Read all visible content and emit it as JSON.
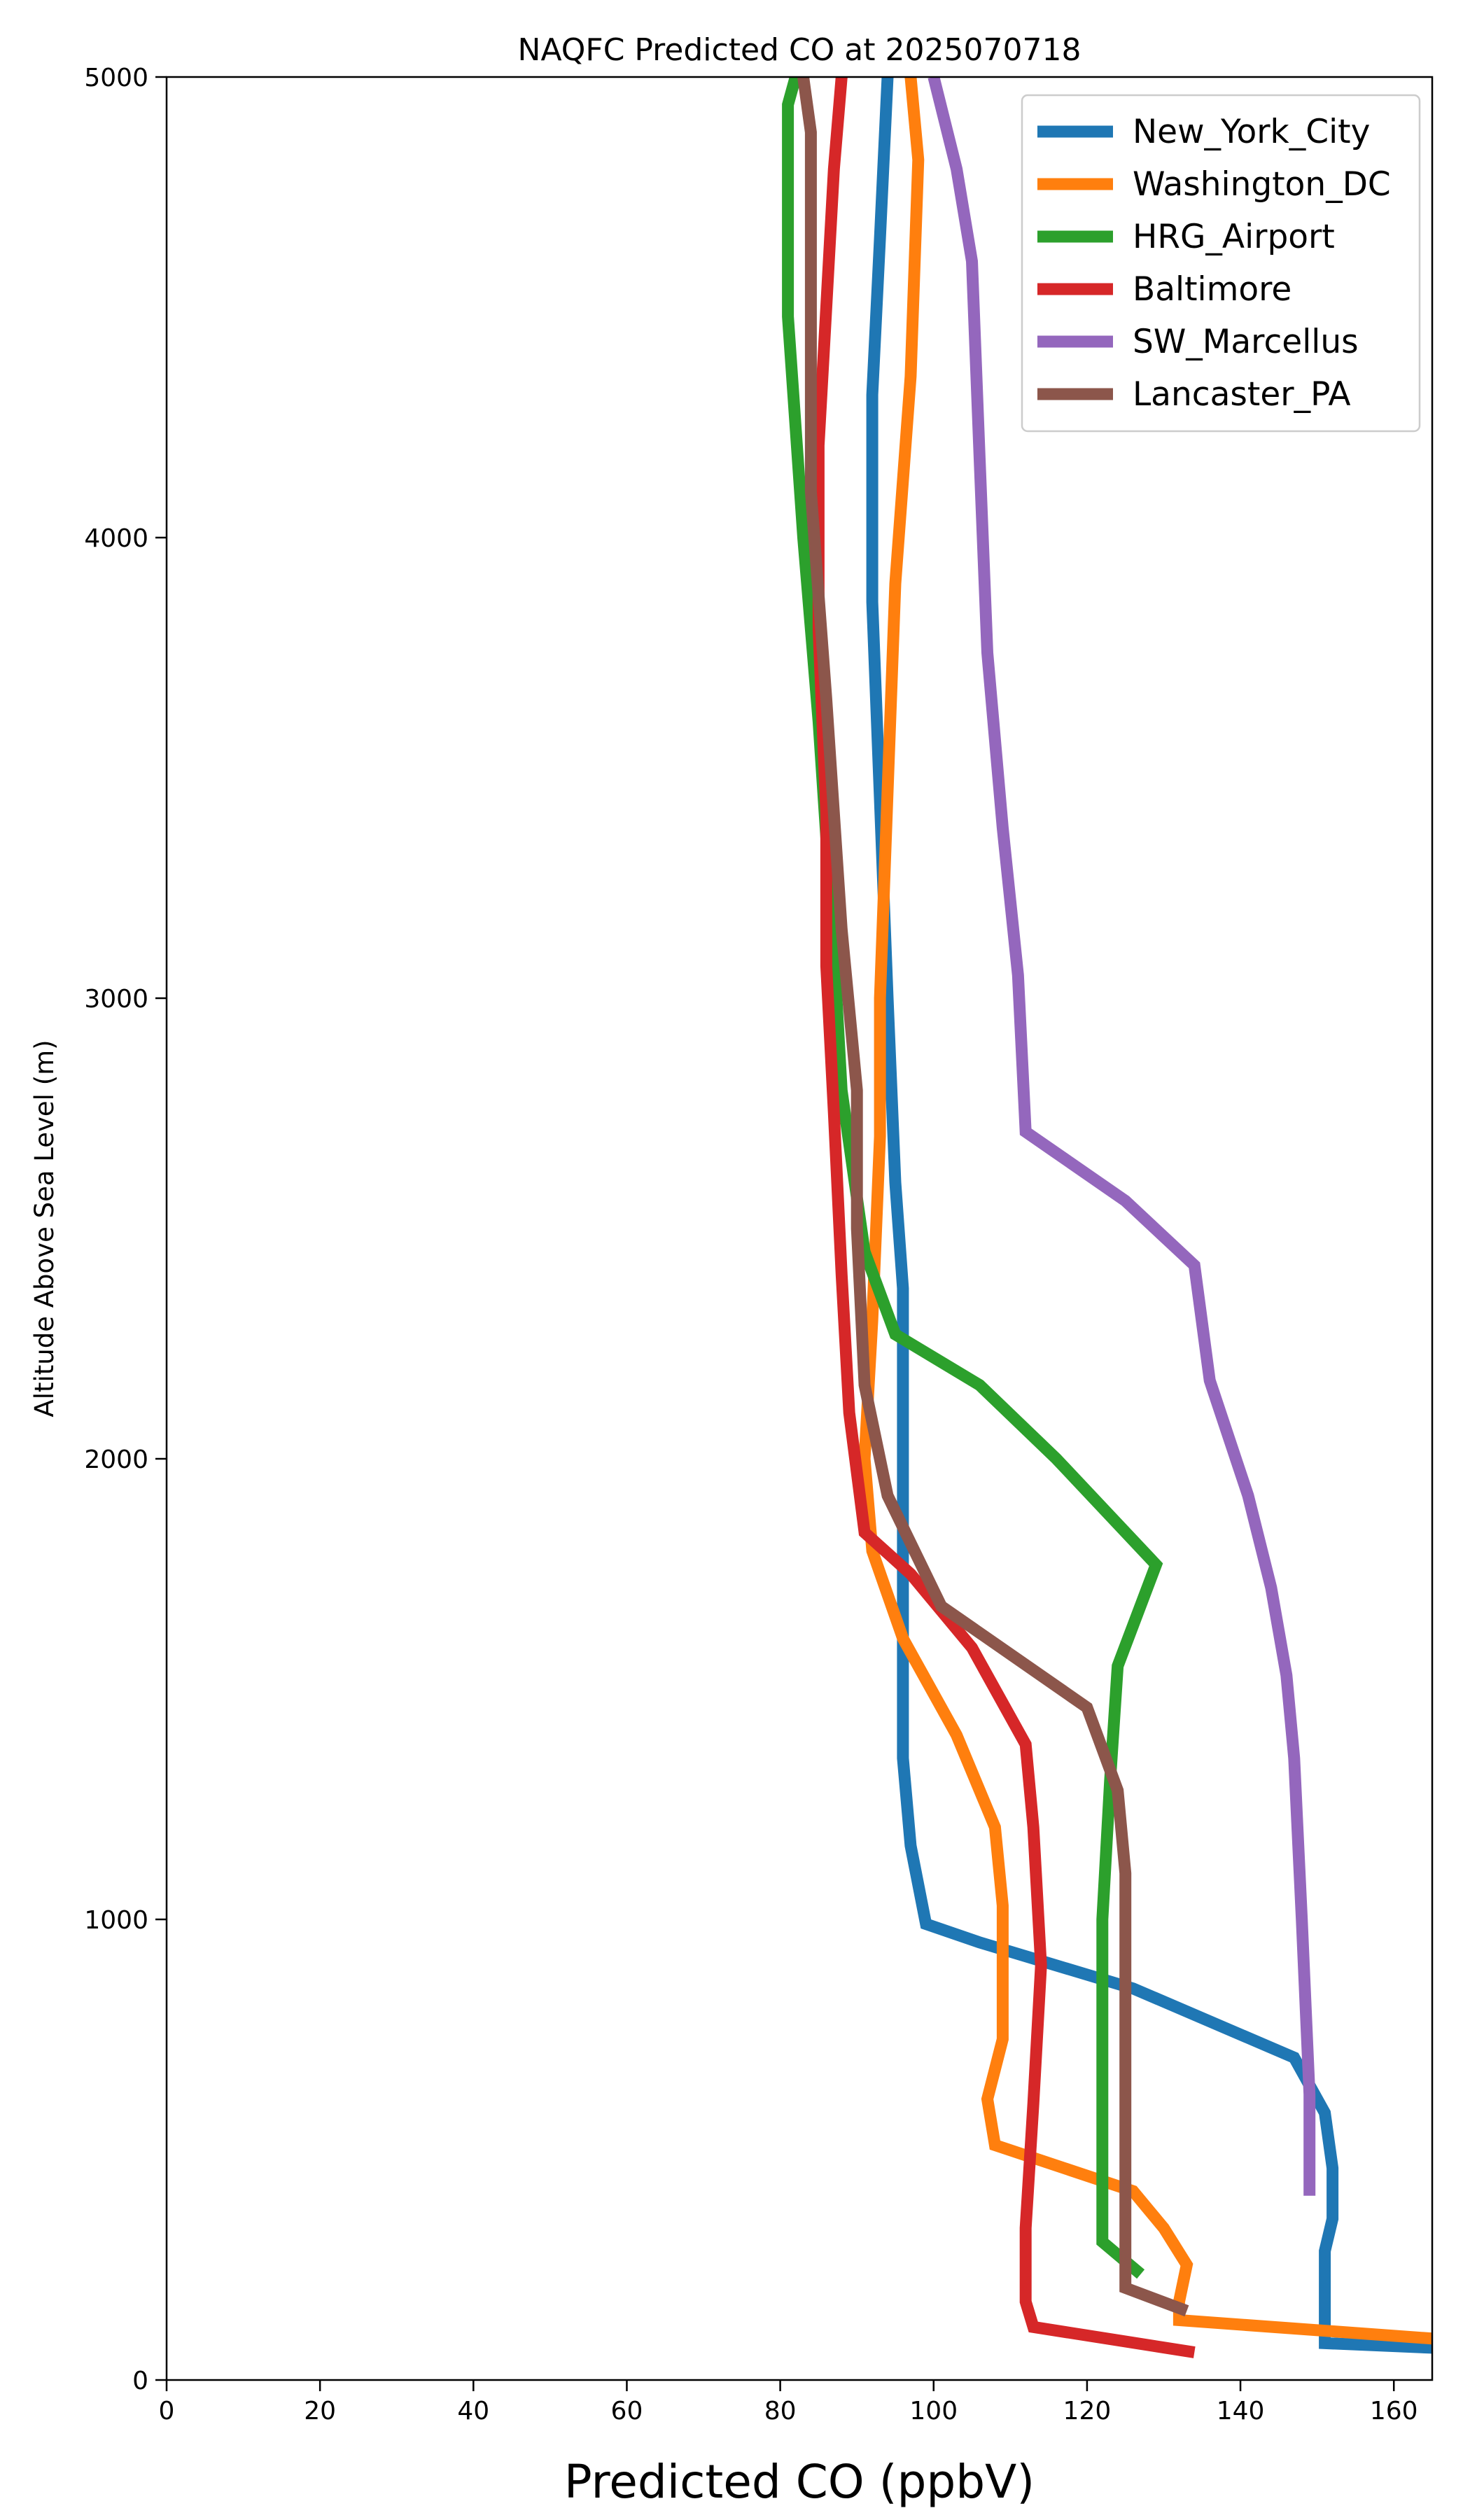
{
  "chart_data": {
    "type": "line",
    "title": "NAQFC Predicted CO at 2025070718",
    "xlabel": "Predicted CO (ppbV)",
    "ylabel": "Altitude Above Sea Level (m)",
    "xlim": [
      0,
      165
    ],
    "ylim": [
      0,
      5000
    ],
    "x_ticks": [
      0,
      20,
      40,
      60,
      80,
      100,
      120,
      140,
      160
    ],
    "y_ticks": [
      0,
      1000,
      2000,
      3000,
      4000,
      5000
    ],
    "grid": false,
    "legend_position": "top-right",
    "series": [
      {
        "name": "New_York_City",
        "color": "#1f77b4",
        "points": [
          [
            165,
            70
          ],
          [
            151,
            80
          ],
          [
            151,
            150
          ],
          [
            151,
            280
          ],
          [
            152,
            350
          ],
          [
            152,
            460
          ],
          [
            151,
            580
          ],
          [
            147,
            700
          ],
          [
            126,
            850
          ],
          [
            106,
            950
          ],
          [
            99,
            990
          ],
          [
            97,
            1160
          ],
          [
            96,
            1350
          ],
          [
            96,
            1560
          ],
          [
            96,
            1800
          ],
          [
            96,
            2060
          ],
          [
            96,
            2370
          ],
          [
            95,
            2600
          ],
          [
            94,
            3000
          ],
          [
            93,
            3430
          ],
          [
            92,
            3860
          ],
          [
            92,
            4310
          ],
          [
            93,
            4650
          ],
          [
            94,
            5000
          ]
        ]
      },
      {
        "name": "Washington_DC",
        "color": "#ff7f0e",
        "points": [
          [
            165,
            90
          ],
          [
            132,
            130
          ],
          [
            132,
            170
          ],
          [
            133,
            250
          ],
          [
            130,
            330
          ],
          [
            126,
            410
          ],
          [
            108,
            510
          ],
          [
            107,
            610
          ],
          [
            109,
            740
          ],
          [
            109,
            1030
          ],
          [
            108,
            1200
          ],
          [
            103,
            1400
          ],
          [
            96,
            1610
          ],
          [
            92,
            1800
          ],
          [
            91,
            2000
          ],
          [
            92,
            2300
          ],
          [
            93,
            2700
          ],
          [
            93,
            3000
          ],
          [
            94,
            3450
          ],
          [
            95,
            3900
          ],
          [
            97,
            4350
          ],
          [
            98,
            4820
          ],
          [
            97,
            5000
          ]
        ]
      },
      {
        "name": "HRG_Airport",
        "color": "#2ca02c",
        "points": [
          [
            127,
            230
          ],
          [
            122,
            300
          ],
          [
            122,
            600
          ],
          [
            122,
            1000
          ],
          [
            123,
            1300
          ],
          [
            124,
            1550
          ],
          [
            129,
            1770
          ],
          [
            116,
            2000
          ],
          [
            106,
            2160
          ],
          [
            95,
            2270
          ],
          [
            91,
            2450
          ],
          [
            88,
            2800
          ],
          [
            87,
            3100
          ],
          [
            85,
            3600
          ],
          [
            83,
            4000
          ],
          [
            81,
            4480
          ],
          [
            81,
            4700
          ],
          [
            81,
            4940
          ],
          [
            82,
            5000
          ]
        ]
      },
      {
        "name": "Baltimore",
        "color": "#d62728",
        "points": [
          [
            134,
            60
          ],
          [
            113,
            115
          ],
          [
            112,
            170
          ],
          [
            112,
            330
          ],
          [
            113,
            600
          ],
          [
            114,
            900
          ],
          [
            113,
            1200
          ],
          [
            112,
            1380
          ],
          [
            105,
            1590
          ],
          [
            97,
            1750
          ],
          [
            91,
            1840
          ],
          [
            89,
            2100
          ],
          [
            88,
            2400
          ],
          [
            87,
            2750
          ],
          [
            86,
            3070
          ],
          [
            86,
            3400
          ],
          [
            85,
            3800
          ],
          [
            85,
            4200
          ],
          [
            86,
            4500
          ],
          [
            87,
            4800
          ],
          [
            88,
            5000
          ]
        ]
      },
      {
        "name": "SW_Marcellus",
        "color": "#9467bd",
        "points": [
          [
            149,
            400
          ],
          [
            149,
            620
          ],
          [
            148,
            1000
          ],
          [
            147,
            1350
          ],
          [
            146,
            1530
          ],
          [
            144,
            1720
          ],
          [
            141,
            1920
          ],
          [
            136,
            2170
          ],
          [
            134,
            2420
          ],
          [
            125,
            2560
          ],
          [
            112,
            2710
          ],
          [
            111,
            3050
          ],
          [
            109,
            3370
          ],
          [
            107,
            3750
          ],
          [
            106,
            4170
          ],
          [
            105,
            4600
          ],
          [
            103,
            4800
          ],
          [
            100,
            5000
          ]
        ]
      },
      {
        "name": "Lancaster_PA",
        "color": "#8c564b",
        "points": [
          [
            133,
            150
          ],
          [
            125,
            200
          ],
          [
            125,
            600
          ],
          [
            125,
            1100
          ],
          [
            124,
            1280
          ],
          [
            120,
            1460
          ],
          [
            101,
            1680
          ],
          [
            94,
            1920
          ],
          [
            91,
            2160
          ],
          [
            90,
            2500
          ],
          [
            90,
            2800
          ],
          [
            88,
            3150
          ],
          [
            86,
            3650
          ],
          [
            84,
            4100
          ],
          [
            84,
            4500
          ],
          [
            84,
            4880
          ],
          [
            83,
            5000
          ]
        ]
      }
    ]
  }
}
